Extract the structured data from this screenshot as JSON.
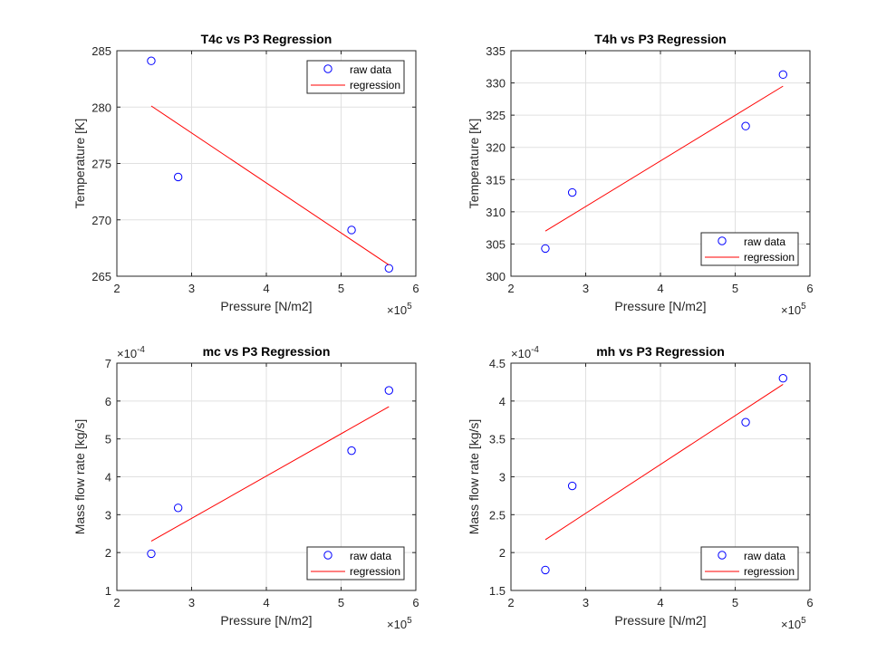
{
  "chart_data": [
    {
      "type": "scatter",
      "title": "T4c vs P3 Regression",
      "xlabel": "Pressure [N/m2]",
      "ylabel": "Temperature [K]",
      "xlim": [
        2,
        6
      ],
      "ylim": [
        265,
        285
      ],
      "xticks": [
        "2",
        "3",
        "4",
        "5",
        "6"
      ],
      "yticks": [
        "265",
        "270",
        "275",
        "280",
        "285"
      ],
      "x_exponent": "5",
      "y_exponent": null,
      "grid": true,
      "legend_position": "top-right",
      "series": [
        {
          "name": "raw data",
          "style": "markers",
          "color": "#0000ff",
          "x": [
            2.46,
            2.82,
            5.14,
            5.64
          ],
          "y": [
            284.1,
            273.8,
            269.1,
            265.7
          ]
        },
        {
          "name": "regression",
          "style": "line",
          "color": "#ff0000",
          "x": [
            2.46,
            5.64
          ],
          "y": [
            280.1,
            266.0
          ]
        }
      ]
    },
    {
      "type": "scatter",
      "title": "T4h vs P3 Regression",
      "xlabel": "Pressure [N/m2]",
      "ylabel": "Temperature [K]",
      "xlim": [
        2,
        6
      ],
      "ylim": [
        300,
        335
      ],
      "xticks": [
        "2",
        "3",
        "4",
        "5",
        "6"
      ],
      "yticks": [
        "300",
        "305",
        "310",
        "315",
        "320",
        "325",
        "330",
        "335"
      ],
      "x_exponent": "5",
      "y_exponent": null,
      "grid": true,
      "legend_position": "bottom-right",
      "series": [
        {
          "name": "raw data",
          "style": "markers",
          "color": "#0000ff",
          "x": [
            2.46,
            2.82,
            5.14,
            5.64
          ],
          "y": [
            304.3,
            313.0,
            323.3,
            331.3
          ]
        },
        {
          "name": "regression",
          "style": "line",
          "color": "#ff0000",
          "x": [
            2.46,
            5.64
          ],
          "y": [
            307.0,
            329.5
          ]
        }
      ]
    },
    {
      "type": "scatter",
      "title": "mc vs P3 Regression",
      "xlabel": "Pressure [N/m2]",
      "ylabel": "Mass flow rate [kg/s]",
      "xlim": [
        2,
        6
      ],
      "ylim": [
        1,
        7
      ],
      "xticks": [
        "2",
        "3",
        "4",
        "5",
        "6"
      ],
      "yticks": [
        "1",
        "2",
        "3",
        "4",
        "5",
        "6",
        "7"
      ],
      "x_exponent": "5",
      "y_exponent": "-4",
      "grid": true,
      "legend_position": "bottom-right",
      "series": [
        {
          "name": "raw data",
          "style": "markers",
          "color": "#0000ff",
          "x": [
            2.46,
            2.82,
            5.14,
            5.64
          ],
          "y": [
            1.97,
            3.18,
            4.69,
            6.28
          ]
        },
        {
          "name": "regression",
          "style": "line",
          "color": "#ff0000",
          "x": [
            2.46,
            5.64
          ],
          "y": [
            2.3,
            5.85
          ]
        }
      ]
    },
    {
      "type": "scatter",
      "title": "mh vs P3 Regression",
      "xlabel": "Pressure [N/m2]",
      "ylabel": "Mass flow rate [kg/s]",
      "xlim": [
        2,
        6
      ],
      "ylim": [
        1.5,
        4.5
      ],
      "xticks": [
        "2",
        "3",
        "4",
        "5",
        "6"
      ],
      "yticks": [
        "1.5",
        "2",
        "2.5",
        "3",
        "3.5",
        "4",
        "4.5"
      ],
      "x_exponent": "5",
      "y_exponent": "-4",
      "grid": true,
      "legend_position": "bottom-right",
      "series": [
        {
          "name": "raw data",
          "style": "markers",
          "color": "#0000ff",
          "x": [
            2.46,
            2.82,
            5.14,
            5.64
          ],
          "y": [
            1.77,
            2.88,
            3.72,
            4.3
          ]
        },
        {
          "name": "regression",
          "style": "line",
          "color": "#ff0000",
          "x": [
            2.46,
            5.64
          ],
          "y": [
            2.17,
            4.22
          ]
        }
      ]
    }
  ]
}
